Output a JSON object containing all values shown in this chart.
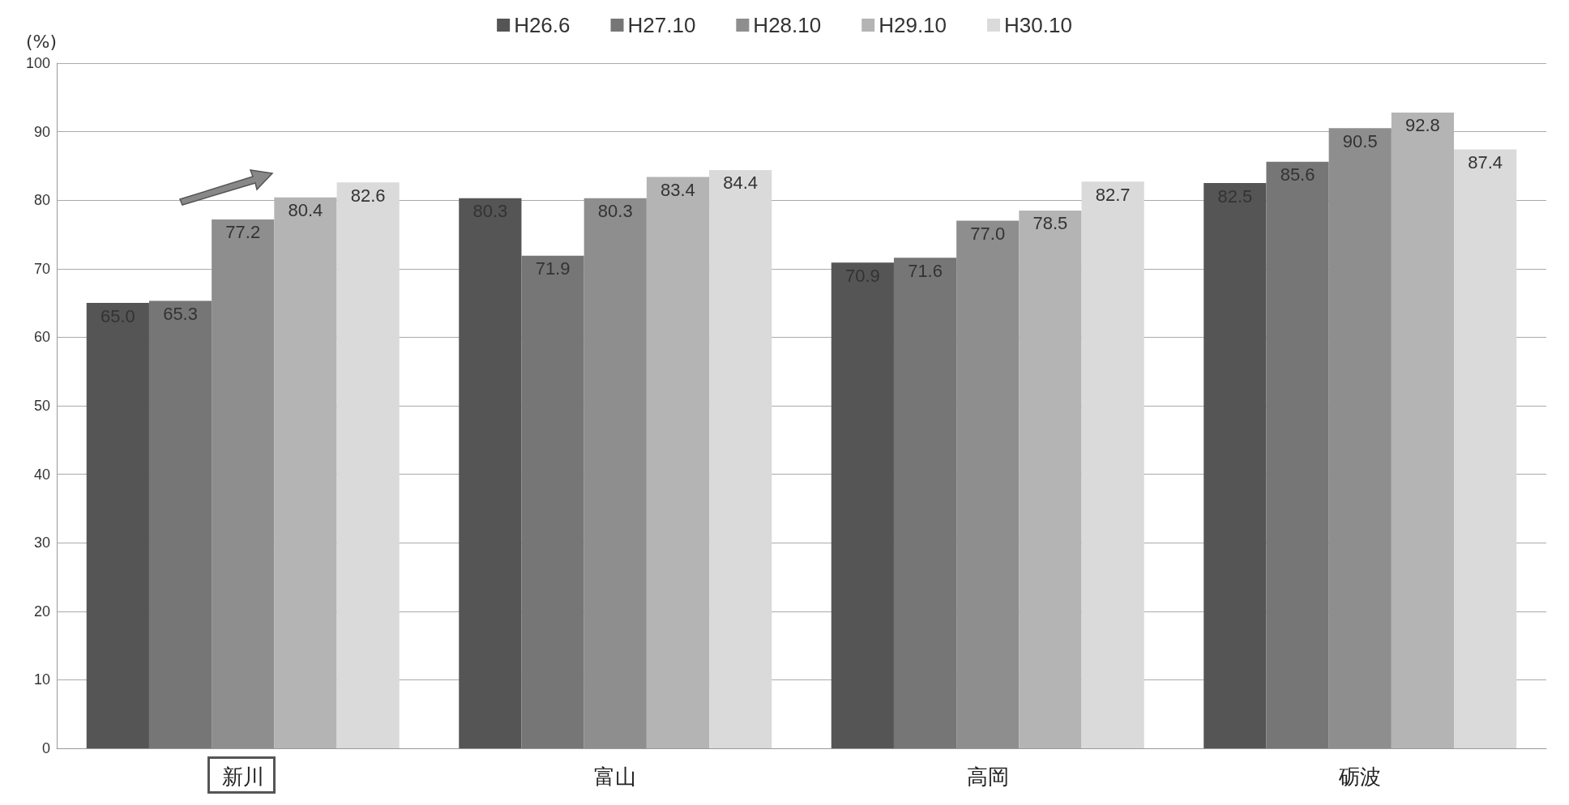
{
  "chart_data": {
    "type": "bar",
    "ylabel": "(%)",
    "categories": [
      "新川",
      "富山",
      "高岡",
      "砺波"
    ],
    "series": [
      {
        "name": "H26.6",
        "color": "#555555",
        "values": [
          65.0,
          80.3,
          70.9,
          82.5
        ],
        "value_labels": [
          "65.0",
          "80.3",
          "70.9",
          "82.5"
        ]
      },
      {
        "name": "H27.10",
        "color": "#767676",
        "values": [
          65.3,
          71.9,
          71.6,
          85.6
        ],
        "value_labels": [
          "65.3",
          "71.9",
          "71.6",
          "85.6"
        ]
      },
      {
        "name": "H28.10",
        "color": "#8e8e8e",
        "values": [
          77.2,
          80.3,
          77.0,
          90.5
        ],
        "value_labels": [
          "77.2",
          "80.3",
          "77.0",
          "90.5"
        ]
      },
      {
        "name": "H29.10",
        "color": "#b4b4b4",
        "values": [
          80.4,
          83.4,
          78.5,
          92.8
        ],
        "value_labels": [
          "80.4",
          "83.4",
          "78.5",
          "92.8"
        ]
      },
      {
        "name": "H30.10",
        "color": "#dadada",
        "values": [
          82.6,
          84.4,
          82.7,
          87.4
        ],
        "value_labels": [
          "82.6",
          "84.4",
          "82.7",
          "87.4"
        ]
      }
    ],
    "ylim": [
      0,
      100
    ],
    "yticks": [
      0,
      10,
      20,
      30,
      40,
      50,
      60,
      70,
      80,
      90,
      100
    ],
    "grid": "y",
    "legend": "top"
  }
}
